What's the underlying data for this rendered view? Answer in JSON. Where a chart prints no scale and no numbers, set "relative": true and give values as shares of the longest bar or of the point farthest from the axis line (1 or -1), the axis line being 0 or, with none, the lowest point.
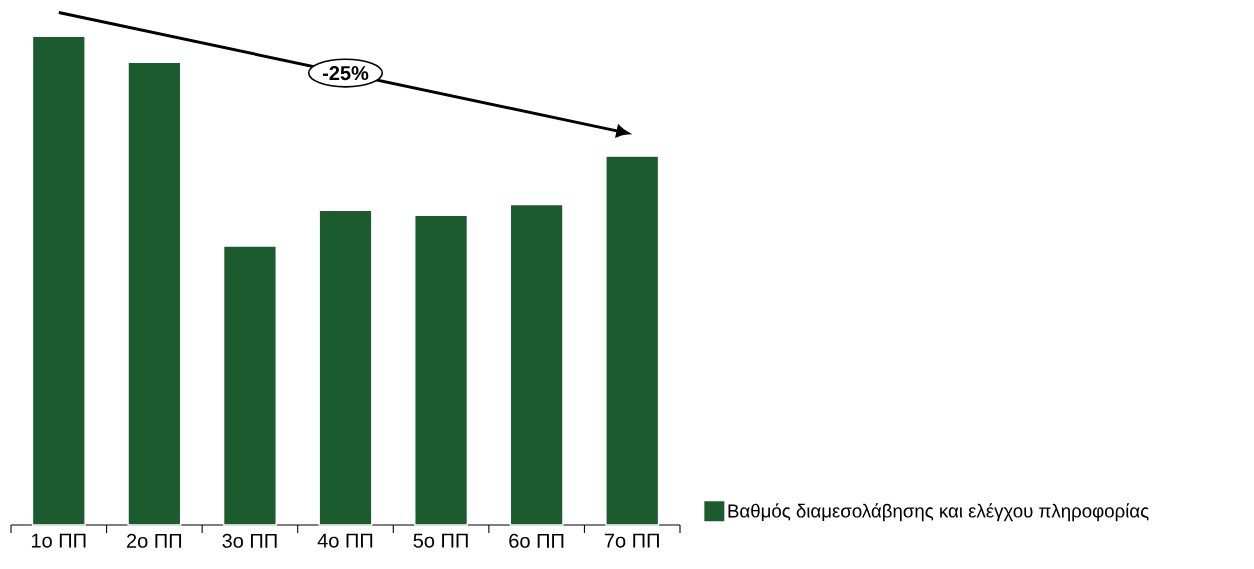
{
  "chart_data": {
    "type": "bar",
    "relative": true,
    "categories": [
      "1ο ΠΠ",
      "2ο ΠΠ",
      "3ο ΠΠ",
      "4ο ΠΠ",
      "5ο ΠΠ",
      "6ο ΠΠ",
      "7ο ΠΠ"
    ],
    "series": [
      {
        "name": "Βαθμός διαμεσολάβησης και ελέγχου πληροφορίας",
        "color": "#1b5b2e",
        "values": [
          1,
          0.947,
          0.571,
          0.644,
          0.634,
          0.656,
          0.755
        ]
      }
    ],
    "annotations": [
      "-25%"
    ],
    "legend": "bottom right"
  }
}
